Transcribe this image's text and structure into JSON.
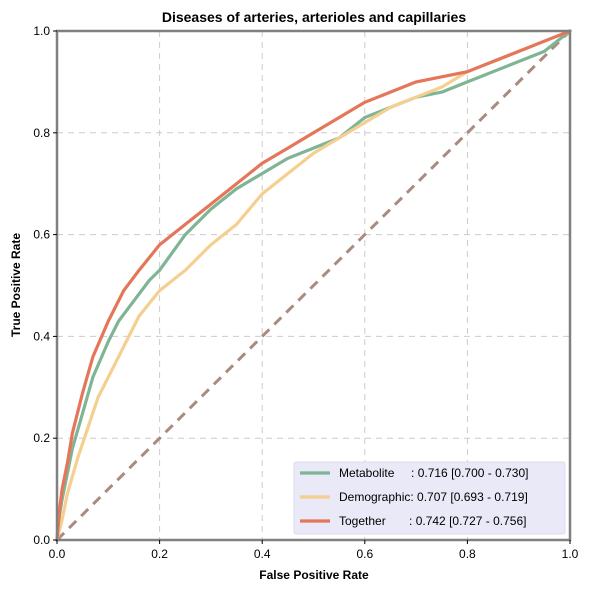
{
  "chart_data": {
    "type": "line",
    "title": "Diseases of arteries, arterioles and capillaries",
    "xlabel": "False Positive Rate",
    "ylabel": "True Positive Rate",
    "xlim": [
      0,
      1
    ],
    "ylim": [
      0,
      1
    ],
    "xticks": [
      "0.0",
      "0.2",
      "0.4",
      "0.6",
      "0.8",
      "1.0"
    ],
    "yticks": [
      "0.0",
      "0.2",
      "0.4",
      "0.6",
      "0.8",
      "1.0"
    ],
    "grid": true,
    "legend_position": "bottom-right",
    "colors": {
      "metabolite": "#7fb595",
      "demographic": "#f4cf8f",
      "together": "#e4765a",
      "diagonal": "#a98b7f",
      "frame": "#808080",
      "legend_bg": "#e9e9f7"
    },
    "series": [
      {
        "key": "metabolite",
        "name": "Metabolite",
        "legend_label": "Metabolite     : 0.716 [0.700 - 0.730]",
        "auc": 0.716,
        "ci": [
          0.7,
          0.73
        ],
        "x": [
          0,
          0.005,
          0.01,
          0.02,
          0.03,
          0.05,
          0.07,
          0.1,
          0.12,
          0.15,
          0.18,
          0.2,
          0.25,
          0.3,
          0.35,
          0.4,
          0.45,
          0.5,
          0.55,
          0.6,
          0.65,
          0.7,
          0.75,
          0.8,
          0.85,
          0.9,
          0.95,
          1.0
        ],
        "y": [
          0,
          0.05,
          0.08,
          0.13,
          0.18,
          0.25,
          0.32,
          0.39,
          0.43,
          0.47,
          0.51,
          0.53,
          0.6,
          0.65,
          0.69,
          0.72,
          0.75,
          0.77,
          0.79,
          0.83,
          0.85,
          0.87,
          0.88,
          0.9,
          0.92,
          0.94,
          0.96,
          1.0
        ]
      },
      {
        "key": "demographic",
        "name": "Demographic",
        "legend_label": "Demographic: 0.707 [0.693 - 0.719]",
        "auc": 0.707,
        "ci": [
          0.693,
          0.719
        ],
        "x": [
          0,
          0.01,
          0.02,
          0.04,
          0.06,
          0.08,
          0.1,
          0.12,
          0.14,
          0.16,
          0.2,
          0.25,
          0.3,
          0.35,
          0.4,
          0.45,
          0.5,
          0.55,
          0.6,
          0.65,
          0.7,
          0.75,
          0.8,
          0.85,
          0.9,
          0.95,
          1.0
        ],
        "y": [
          0,
          0.04,
          0.09,
          0.16,
          0.22,
          0.28,
          0.32,
          0.36,
          0.4,
          0.44,
          0.49,
          0.53,
          0.58,
          0.62,
          0.68,
          0.72,
          0.76,
          0.79,
          0.82,
          0.85,
          0.87,
          0.89,
          0.92,
          0.94,
          0.96,
          0.98,
          1.0
        ]
      },
      {
        "key": "together",
        "name": "Together",
        "legend_label": "Together       : 0.742 [0.727 - 0.756]",
        "auc": 0.742,
        "ci": [
          0.727,
          0.756
        ],
        "x": [
          0,
          0.005,
          0.01,
          0.02,
          0.03,
          0.05,
          0.07,
          0.1,
          0.13,
          0.16,
          0.2,
          0.25,
          0.3,
          0.35,
          0.4,
          0.45,
          0.5,
          0.55,
          0.6,
          0.65,
          0.7,
          0.75,
          0.8,
          0.85,
          0.9,
          0.95,
          1.0
        ],
        "y": [
          0,
          0.06,
          0.1,
          0.15,
          0.21,
          0.29,
          0.36,
          0.43,
          0.49,
          0.53,
          0.58,
          0.62,
          0.66,
          0.7,
          0.74,
          0.77,
          0.8,
          0.83,
          0.86,
          0.88,
          0.9,
          0.91,
          0.92,
          0.94,
          0.96,
          0.98,
          1.0
        ]
      }
    ],
    "reference_line": {
      "x": [
        0,
        1
      ],
      "y": [
        0,
        1
      ],
      "style": "dashed"
    }
  }
}
